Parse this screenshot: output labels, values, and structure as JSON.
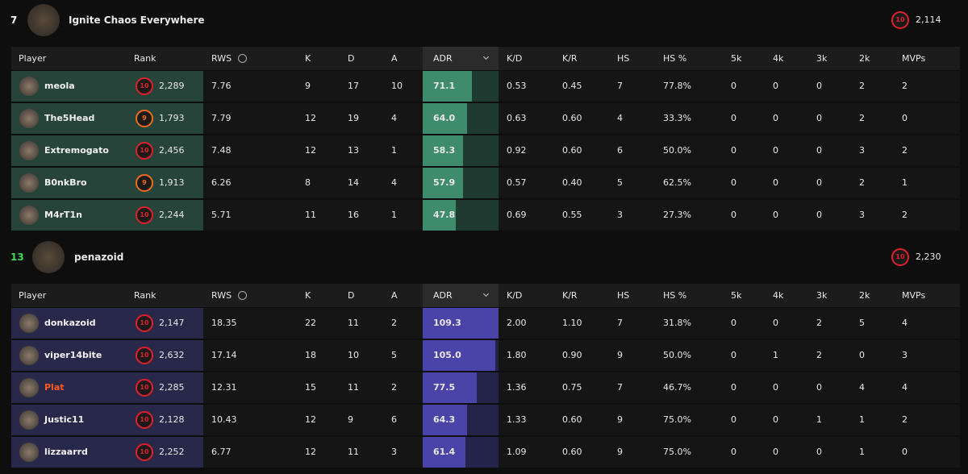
{
  "teams": [
    {
      "rank": "7",
      "rank_color": "#ffffff",
      "name": "Ignite Chaos Everywhere",
      "level": "10",
      "elo": "2,114",
      "row_color": "#27443a",
      "adr_bg": "#1f3a30",
      "adr_color": "#3f8c6d",
      "columns": [
        "Player",
        "Rank",
        "RWS",
        "K",
        "D",
        "A",
        "ADR",
        "K/D",
        "K/R",
        "HS",
        "HS %",
        "5k",
        "4k",
        "3k",
        "2k",
        "MVPs"
      ],
      "players": [
        {
          "name": "meola",
          "level": "10",
          "level_color": "#e0202a",
          "elo": "2,289",
          "stats": [
            "7.76",
            "9",
            "17",
            "10",
            "71.1",
            "0.53",
            "0.45",
            "7",
            "77.8%",
            "0",
            "0",
            "0",
            "2",
            "2"
          ]
        },
        {
          "name": "The5Head",
          "level": "9",
          "level_color": "#f06a1a",
          "elo": "1,793",
          "stats": [
            "7.79",
            "12",
            "19",
            "4",
            "64.0",
            "0.63",
            "0.60",
            "4",
            "33.3%",
            "0",
            "0",
            "0",
            "2",
            "0"
          ]
        },
        {
          "name": "Extremogato",
          "level": "10",
          "level_color": "#e0202a",
          "elo": "2,456",
          "stats": [
            "7.48",
            "12",
            "13",
            "1",
            "58.3",
            "0.92",
            "0.60",
            "6",
            "50.0%",
            "0",
            "0",
            "0",
            "3",
            "2"
          ]
        },
        {
          "name": "B0nkBro",
          "level": "9",
          "level_color": "#f06a1a",
          "elo": "1,913",
          "stats": [
            "6.26",
            "8",
            "14",
            "4",
            "57.9",
            "0.57",
            "0.40",
            "5",
            "62.5%",
            "0",
            "0",
            "0",
            "2",
            "1"
          ]
        },
        {
          "name": "M4rT1n",
          "level": "10",
          "level_color": "#e0202a",
          "elo": "2,244",
          "stats": [
            "5.71",
            "11",
            "16",
            "1",
            "47.8",
            "0.69",
            "0.55",
            "3",
            "27.3%",
            "0",
            "0",
            "0",
            "3",
            "2"
          ]
        }
      ]
    },
    {
      "rank": "13",
      "rank_color": "#3ddc5a",
      "name": "penazoid",
      "level": "10",
      "elo": "2,230",
      "row_color": "#28284a",
      "adr_bg": "#24244a",
      "adr_color": "#4a43a8",
      "columns": [
        "Player",
        "Rank",
        "RWS",
        "K",
        "D",
        "A",
        "ADR",
        "K/D",
        "K/R",
        "HS",
        "HS %",
        "5k",
        "4k",
        "3k",
        "2k",
        "MVPs"
      ],
      "players": [
        {
          "name": "donkazoid",
          "level": "10",
          "level_color": "#e0202a",
          "elo": "2,147",
          "stats": [
            "18.35",
            "22",
            "11",
            "2",
            "109.3",
            "2.00",
            "1.10",
            "7",
            "31.8%",
            "0",
            "0",
            "2",
            "5",
            "4"
          ]
        },
        {
          "name": "viper14bite",
          "level": "10",
          "level_color": "#e0202a",
          "elo": "2,632",
          "stats": [
            "17.14",
            "18",
            "10",
            "5",
            "105.0",
            "1.80",
            "0.90",
            "9",
            "50.0%",
            "0",
            "1",
            "2",
            "0",
            "3"
          ]
        },
        {
          "name": "Plat",
          "name_color": "#ff5a1f",
          "level": "10",
          "level_color": "#e0202a",
          "elo": "2,285",
          "stats": [
            "12.31",
            "15",
            "11",
            "2",
            "77.5",
            "1.36",
            "0.75",
            "7",
            "46.7%",
            "0",
            "0",
            "0",
            "4",
            "4"
          ]
        },
        {
          "name": "Justic11",
          "level": "10",
          "level_color": "#e0202a",
          "elo": "2,128",
          "stats": [
            "10.43",
            "12",
            "9",
            "6",
            "64.3",
            "1.33",
            "0.60",
            "9",
            "75.0%",
            "0",
            "0",
            "1",
            "1",
            "2"
          ]
        },
        {
          "name": "lizzaarrd",
          "level": "10",
          "level_color": "#e0202a",
          "elo": "2,252",
          "stats": [
            "6.77",
            "12",
            "11",
            "3",
            "61.4",
            "1.09",
            "0.60",
            "9",
            "75.0%",
            "0",
            "0",
            "0",
            "1",
            "0"
          ]
        }
      ]
    }
  ]
}
